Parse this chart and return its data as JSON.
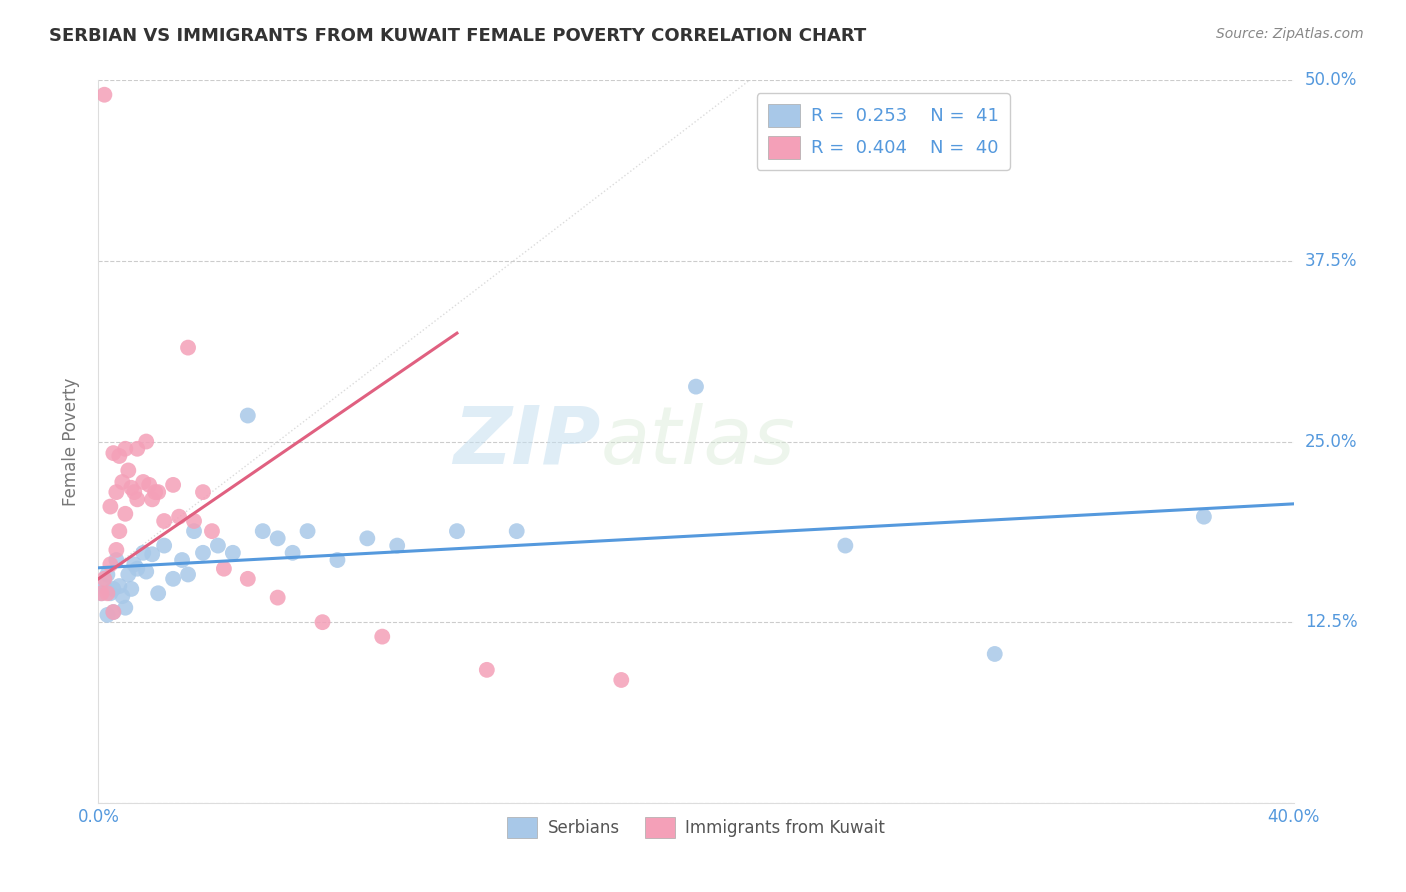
{
  "title": "SERBIAN VS IMMIGRANTS FROM KUWAIT FEMALE POVERTY CORRELATION CHART",
  "source": "Source: ZipAtlas.com",
  "ylabel": "Female Poverty",
  "xlim": [
    0.0,
    0.4
  ],
  "ylim": [
    0.0,
    0.5
  ],
  "ytick_values": [
    0.0,
    0.125,
    0.25,
    0.375,
    0.5
  ],
  "ytick_labels": [
    "",
    "12.5%",
    "25.0%",
    "37.5%",
    "50.0%"
  ],
  "xtick_values": [
    0.0,
    0.4
  ],
  "xtick_labels": [
    "0.0%",
    "40.0%"
  ],
  "watermark_left": "ZIP",
  "watermark_right": "atlas",
  "legend_serbian_R": "0.253",
  "legend_serbian_N": "41",
  "legend_kuwait_R": "0.404",
  "legend_kuwait_N": "40",
  "serbian_color": "#a8c8e8",
  "kuwait_color": "#f4a0b8",
  "serbian_line_color": "#5599dd",
  "kuwait_line_color": "#e06080",
  "background_color": "#ffffff",
  "grid_color": "#cccccc",
  "title_color": "#333333",
  "label_color": "#777777",
  "tick_color": "#5599dd",
  "serbian_x": [
    0.001,
    0.002,
    0.003,
    0.003,
    0.004,
    0.005,
    0.005,
    0.006,
    0.007,
    0.008,
    0.009,
    0.01,
    0.011,
    0.012,
    0.013,
    0.015,
    0.016,
    0.018,
    0.02,
    0.022,
    0.025,
    0.028,
    0.03,
    0.032,
    0.035,
    0.04,
    0.045,
    0.05,
    0.055,
    0.06,
    0.065,
    0.07,
    0.08,
    0.09,
    0.1,
    0.12,
    0.14,
    0.2,
    0.25,
    0.3,
    0.37
  ],
  "serbian_y": [
    0.145,
    0.15,
    0.13,
    0.158,
    0.145,
    0.148,
    0.132,
    0.168,
    0.15,
    0.143,
    0.135,
    0.158,
    0.148,
    0.165,
    0.162,
    0.173,
    0.16,
    0.172,
    0.145,
    0.178,
    0.155,
    0.168,
    0.158,
    0.188,
    0.173,
    0.178,
    0.173,
    0.268,
    0.188,
    0.183,
    0.173,
    0.188,
    0.168,
    0.183,
    0.178,
    0.188,
    0.188,
    0.288,
    0.178,
    0.103,
    0.198
  ],
  "kuwait_x": [
    0.001,
    0.002,
    0.002,
    0.003,
    0.004,
    0.004,
    0.005,
    0.005,
    0.006,
    0.006,
    0.007,
    0.007,
    0.008,
    0.009,
    0.009,
    0.01,
    0.011,
    0.012,
    0.013,
    0.013,
    0.015,
    0.016,
    0.017,
    0.018,
    0.019,
    0.02,
    0.022,
    0.025,
    0.027,
    0.03,
    0.032,
    0.035,
    0.038,
    0.042,
    0.05,
    0.06,
    0.075,
    0.095,
    0.13,
    0.175
  ],
  "kuwait_y": [
    0.145,
    0.49,
    0.155,
    0.145,
    0.165,
    0.205,
    0.132,
    0.242,
    0.175,
    0.215,
    0.188,
    0.24,
    0.222,
    0.245,
    0.2,
    0.23,
    0.218,
    0.215,
    0.21,
    0.245,
    0.222,
    0.25,
    0.22,
    0.21,
    0.215,
    0.215,
    0.195,
    0.22,
    0.198,
    0.315,
    0.195,
    0.215,
    0.188,
    0.162,
    0.155,
    0.142,
    0.125,
    0.115,
    0.092,
    0.085
  ],
  "kuwait_line_x_end": 0.12,
  "serbian_line_x_end": 0.4
}
